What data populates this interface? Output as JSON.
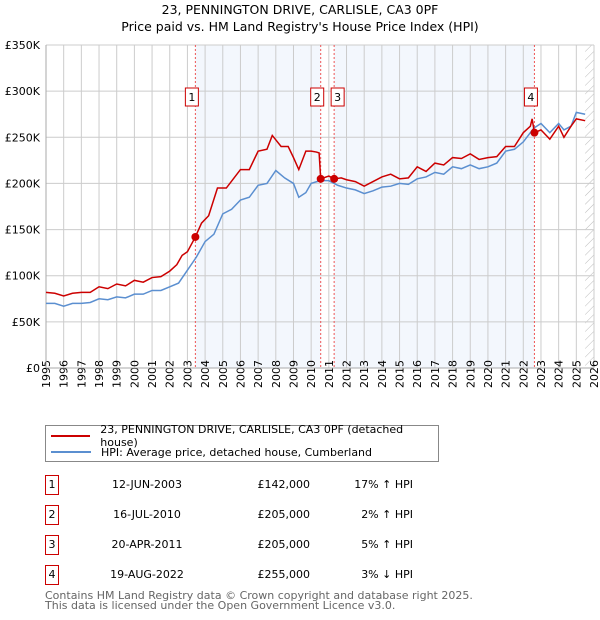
{
  "chart_data": {
    "type": "line",
    "title": "23, PENNINGTON DRIVE, CARLISLE, CA3 0PF",
    "subtitle": "Price paid vs. HM Land Registry's House Price Index (HPI)",
    "xlim": [
      1995,
      2026
    ],
    "ylim": [
      0,
      350000
    ],
    "yticks": [
      {
        "v": 0,
        "label": "£0"
      },
      {
        "v": 50000,
        "label": "£50K"
      },
      {
        "v": 100000,
        "label": "£100K"
      },
      {
        "v": 150000,
        "label": "£150K"
      },
      {
        "v": 200000,
        "label": "£200K"
      },
      {
        "v": 250000,
        "label": "£250K"
      },
      {
        "v": 300000,
        "label": "£300K"
      },
      {
        "v": 350000,
        "label": "£350K"
      }
    ],
    "xticks": [
      "1995",
      "1996",
      "1997",
      "1998",
      "1999",
      "2000",
      "2001",
      "2002",
      "2003",
      "2004",
      "2005",
      "2006",
      "2007",
      "2008",
      "2009",
      "2010",
      "2011",
      "2012",
      "2013",
      "2014",
      "2015",
      "2016",
      "2017",
      "2018",
      "2019",
      "2020",
      "2021",
      "2022",
      "2023",
      "2024",
      "2025",
      "2026"
    ],
    "grid": true,
    "series": [
      {
        "name": "23, PENNINGTON DRIVE, CARLISLE, CA3 0PF (detached house)",
        "color": "#cc0000",
        "x": [
          1995,
          1995.5,
          1996,
          1996.5,
          1997,
          1997.5,
          1998,
          1998.5,
          1999,
          1999.5,
          2000,
          2000.5,
          2001,
          2001.5,
          2002,
          2002.4,
          2002.7,
          2003,
          2003.45,
          2003.8,
          2004.2,
          2004.7,
          2005.2,
          2005.6,
          2006,
          2006.5,
          2007,
          2007.5,
          2007.8,
          2008.3,
          2008.7,
          2009,
          2009.3,
          2009.7,
          2010,
          2010.3,
          2010.45,
          2010.54,
          2011,
          2011.3,
          2011.7,
          2012,
          2012.5,
          2013,
          2013.5,
          2014,
          2014.5,
          2015,
          2015.5,
          2016,
          2016.5,
          2017,
          2017.5,
          2018,
          2018.5,
          2019,
          2019.5,
          2020,
          2020.5,
          2021,
          2021.5,
          2022,
          2022.4,
          2022.5,
          2022.63,
          2023,
          2023.5,
          2024,
          2024.3,
          2024.7,
          2025,
          2025.5
        ],
        "y": [
          82000,
          81000,
          78000,
          81000,
          82000,
          82000,
          88000,
          86000,
          91000,
          89000,
          95000,
          93000,
          98000,
          99000,
          105000,
          112000,
          122000,
          126000,
          142000,
          157000,
          165000,
          195000,
          195000,
          205000,
          215000,
          215000,
          235000,
          237000,
          252000,
          240000,
          240000,
          228000,
          215000,
          235000,
          235000,
          234000,
          233000,
          205000,
          208000,
          205000,
          206000,
          204000,
          202000,
          197000,
          202000,
          207000,
          210000,
          205000,
          206000,
          218000,
          213000,
          222000,
          220000,
          228000,
          227000,
          232000,
          226000,
          228000,
          229000,
          240000,
          240000,
          255000,
          262000,
          270000,
          255000,
          258000,
          248000,
          262000,
          250000,
          262000,
          270000,
          268000
        ]
      },
      {
        "name": "HPI: Average price, detached house, Cumberland",
        "color": "#5b8fd0",
        "x": [
          1995,
          1995.5,
          1996,
          1996.5,
          1997,
          1997.5,
          1998,
          1998.5,
          1999,
          1999.5,
          2000,
          2000.5,
          2001,
          2001.5,
          2002,
          2002.5,
          2003,
          2003.5,
          2004,
          2004.5,
          2005,
          2005.5,
          2006,
          2006.5,
          2007,
          2007.5,
          2008,
          2008.5,
          2009,
          2009.3,
          2009.7,
          2010,
          2010.5,
          2011,
          2011.5,
          2012,
          2012.5,
          2013,
          2013.5,
          2014,
          2014.5,
          2015,
          2015.5,
          2016,
          2016.5,
          2017,
          2017.5,
          2018,
          2018.5,
          2019,
          2019.5,
          2020,
          2020.5,
          2021,
          2021.5,
          2022,
          2022.6,
          2023,
          2023.5,
          2024,
          2024.3,
          2024.7,
          2025,
          2025.5
        ],
        "y": [
          70000,
          70000,
          67000,
          70000,
          70000,
          71000,
          75000,
          74000,
          77000,
          76000,
          80000,
          80000,
          84000,
          84000,
          88000,
          92000,
          106000,
          120000,
          137000,
          145000,
          167000,
          172000,
          182000,
          185000,
          198000,
          200000,
          214000,
          206000,
          200000,
          185000,
          190000,
          200000,
          203000,
          203000,
          198000,
          195000,
          193000,
          189000,
          192000,
          196000,
          197000,
          200000,
          199000,
          205000,
          207000,
          212000,
          210000,
          218000,
          216000,
          220000,
          216000,
          218000,
          222000,
          235000,
          237000,
          245000,
          260000,
          265000,
          255000,
          265000,
          258000,
          262000,
          277000,
          275000
        ]
      }
    ],
    "sales": [
      {
        "n": "1",
        "x": 2003.45,
        "y": 142000
      },
      {
        "n": "2",
        "x": 2010.54,
        "y": 205000
      },
      {
        "n": "3",
        "x": 2011.3,
        "y": 205000
      },
      {
        "n": "4",
        "x": 2022.63,
        "y": 255000
      }
    ]
  },
  "legend": [
    "23, PENNINGTON DRIVE, CARLISLE, CA3 0PF (detached house)",
    "HPI: Average price, detached house, Cumberland"
  ],
  "table": [
    {
      "n": "1",
      "date": "12-JUN-2003",
      "price": "£142,000",
      "hpi": "17% ↑ HPI"
    },
    {
      "n": "2",
      "date": "16-JUL-2010",
      "price": "£205,000",
      "hpi": "2% ↑ HPI"
    },
    {
      "n": "3",
      "date": "20-APR-2011",
      "price": "£205,000",
      "hpi": "5% ↑ HPI"
    },
    {
      "n": "4",
      "date": "19-AUG-2022",
      "price": "£255,000",
      "hpi": "3% ↓ HPI"
    }
  ],
  "footer": [
    "Contains HM Land Registry data © Crown copyright and database right 2025.",
    "This data is licensed under the Open Government Licence v3.0."
  ]
}
